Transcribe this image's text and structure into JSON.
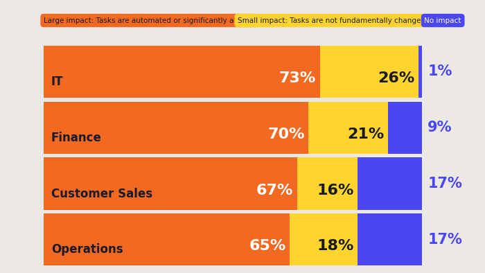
{
  "chart_data": {
    "type": "bar",
    "orientation": "horizontal",
    "stacked": true,
    "data_labels": true,
    "tick_labels": false,
    "grid": false,
    "categories": [
      "IT",
      "Finance",
      "Customer Sales",
      "Operations"
    ],
    "xlim": [
      0,
      100
    ],
    "series": [
      {
        "name": "Large impact: Tasks are automated or significantly altered",
        "color": "#f26a22",
        "values": [
          73,
          70,
          67,
          65
        ],
        "value_labels": [
          "73%",
          "70%",
          "67%",
          "65%"
        ]
      },
      {
        "name": "Small impact: Tasks are not fundamentally changed",
        "color": "#ffd42f",
        "values": [
          26,
          21,
          16,
          18
        ],
        "value_labels": [
          "26%",
          "21%",
          "16%",
          "18%"
        ]
      },
      {
        "name": "No impact",
        "color": "#4b47f0",
        "values": [
          1,
          9,
          17,
          17
        ],
        "value_labels": [
          "1%",
          "9%",
          "17%",
          "17%"
        ]
      }
    ]
  }
}
